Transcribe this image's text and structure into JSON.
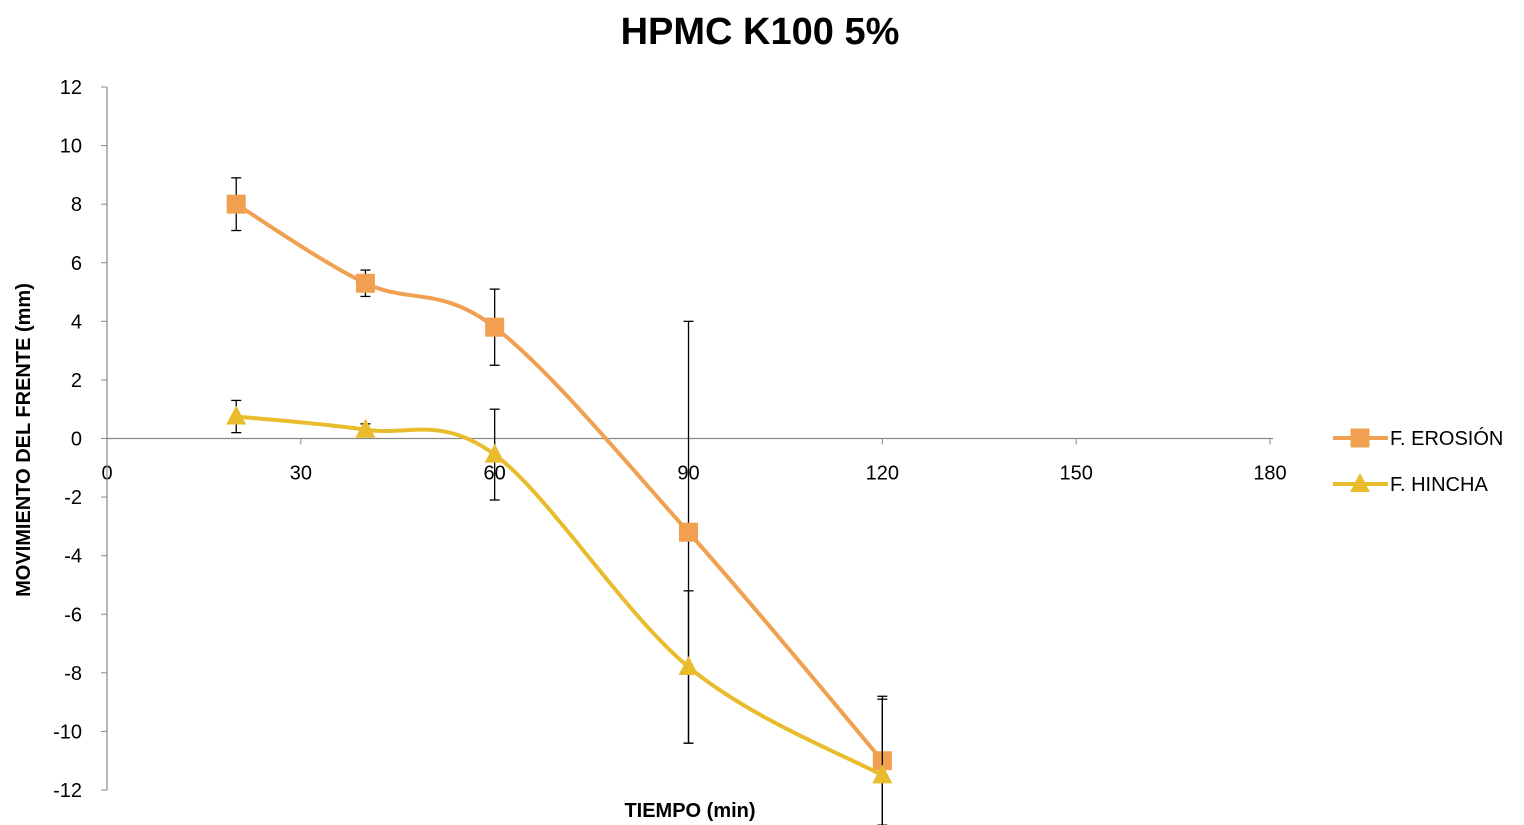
{
  "chart_data": {
    "type": "line",
    "title": "HPMC K100 5%",
    "xlabel": "TIEMPO (min)",
    "ylabel": "MOVIMIENTO DEL FRENTE (mm)",
    "xlim": [
      0,
      180
    ],
    "ylim": [
      -12,
      12
    ],
    "xticks": [
      0,
      30,
      60,
      90,
      120,
      150,
      180
    ],
    "yticks": [
      12,
      10,
      8,
      6,
      4,
      2,
      0,
      -2,
      -4,
      -6,
      -8,
      -10,
      -12
    ],
    "smooth": true,
    "legend_position": "right",
    "series": [
      {
        "name": "F. EROSIÓN",
        "color": "#f0a050",
        "marker": "square",
        "x": [
          20,
          40,
          60,
          90,
          120
        ],
        "y": [
          8.0,
          5.3,
          3.8,
          -3.2,
          -11.0
        ],
        "error": [
          0.9,
          0.45,
          1.3,
          7.2,
          2.2
        ]
      },
      {
        "name": "F. HINCHA",
        "color": "#e8bc2c",
        "marker": "triangle",
        "x": [
          20,
          40,
          60,
          90,
          120
        ],
        "y": [
          0.75,
          0.3,
          -0.55,
          -7.8,
          -11.5
        ],
        "error": [
          0.55,
          0.2,
          1.55,
          2.6,
          2.6
        ]
      }
    ]
  }
}
